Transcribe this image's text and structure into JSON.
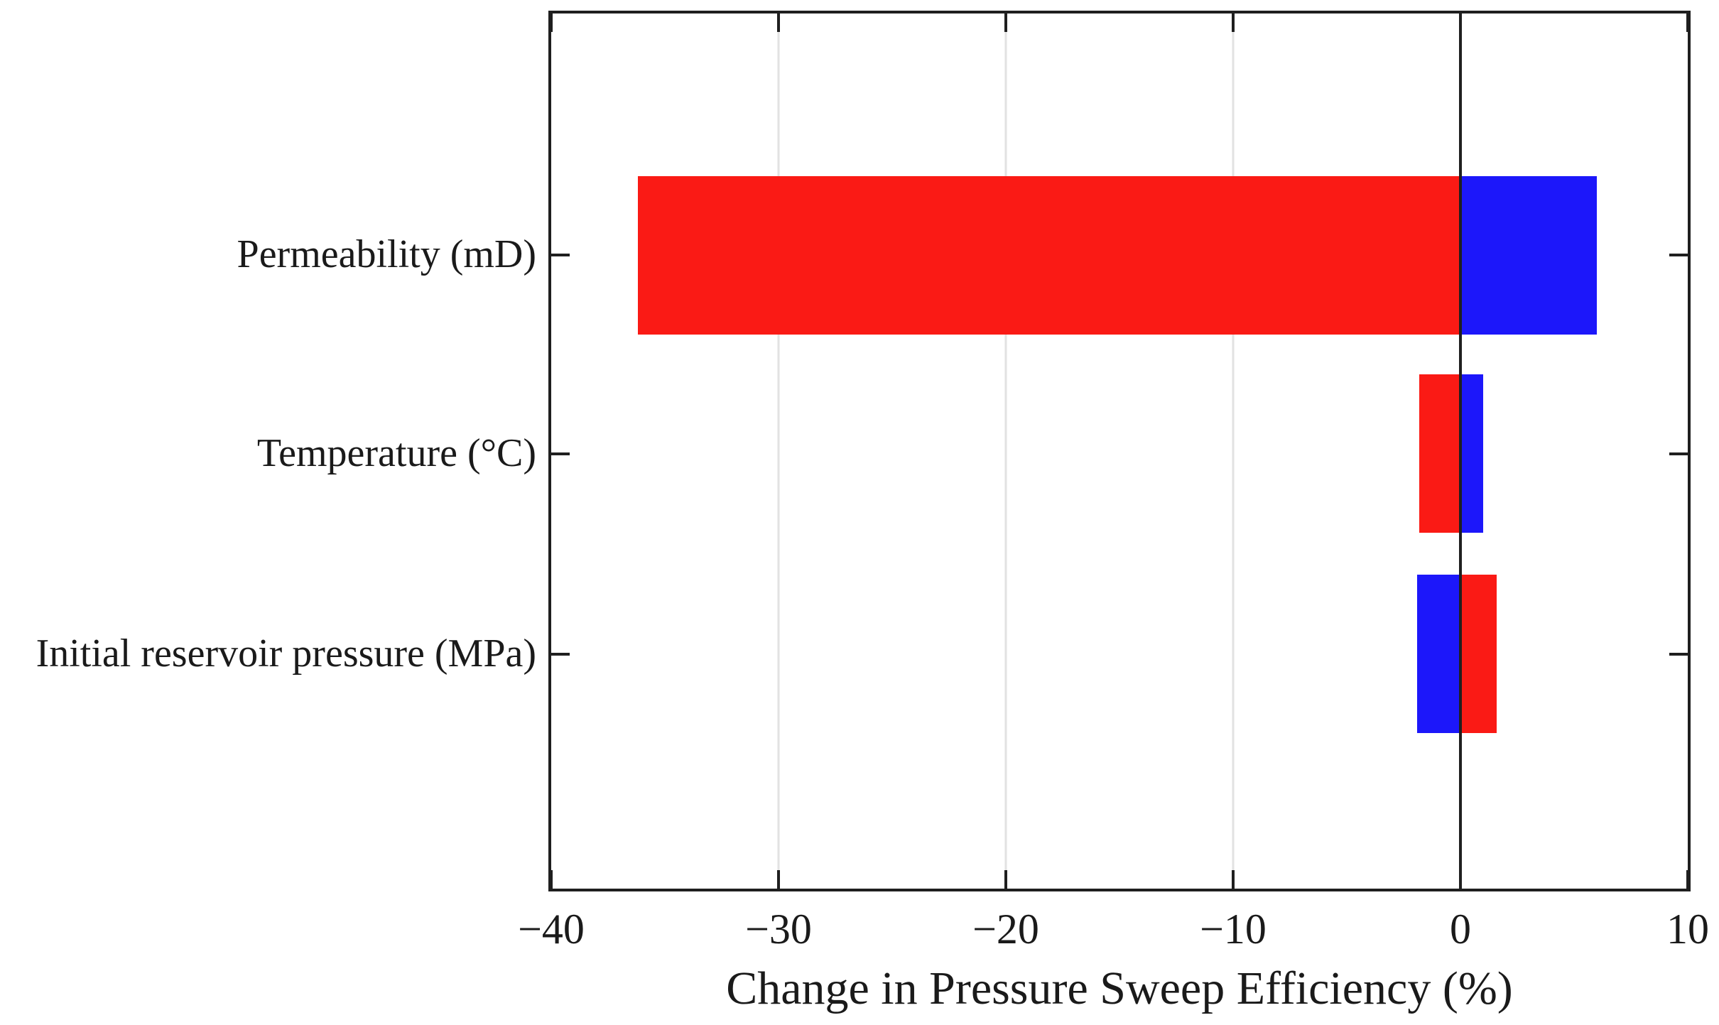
{
  "figure": {
    "background": "#ffffff"
  },
  "chart_data": {
    "type": "bar",
    "orientation": "horizontal",
    "variant": "tornado-sensitivity",
    "title": "",
    "xlabel": "Change in Pressure Sweep Efficiency (%)",
    "ylabel": "",
    "xlim": [
      -40,
      10
    ],
    "x_ticks": [
      {
        "value": -40,
        "label": "−40"
      },
      {
        "value": -30,
        "label": "−30"
      },
      {
        "value": -20,
        "label": "−20"
      },
      {
        "value": -10,
        "label": "−10"
      },
      {
        "value": 0,
        "label": "0"
      },
      {
        "value": 10,
        "label": "10"
      }
    ],
    "categories": [
      "Permeability (mD)",
      "Temperature (°C)",
      "Initial reservoir pressure (MPa)"
    ],
    "rows": [
      {
        "label": "Permeability (mD)",
        "segments": [
          {
            "color": "red",
            "value": -36.2
          },
          {
            "color": "blue",
            "value": 6.0
          }
        ]
      },
      {
        "label": "Temperature (°C)",
        "segments": [
          {
            "color": "red",
            "value": -1.8
          },
          {
            "color": "blue",
            "value": 1.0
          }
        ]
      },
      {
        "label": "Initial reservoir pressure (MPa)",
        "segments": [
          {
            "color": "blue",
            "value": -1.9
          },
          {
            "color": "red",
            "value": 1.6
          }
        ]
      }
    ],
    "colors": {
      "red": "#fa1a15",
      "blue": "#1c17fa",
      "axis": "#1f1f1f",
      "grid": "#e2e2e2",
      "text": "#1a1a1a"
    },
    "grid": "vertical-light",
    "zero_line": true,
    "legend": "none",
    "layout": {
      "row_centers_pct": [
        27.6,
        50.3,
        73.2
      ],
      "bar_height_pct": 18.1
    }
  }
}
